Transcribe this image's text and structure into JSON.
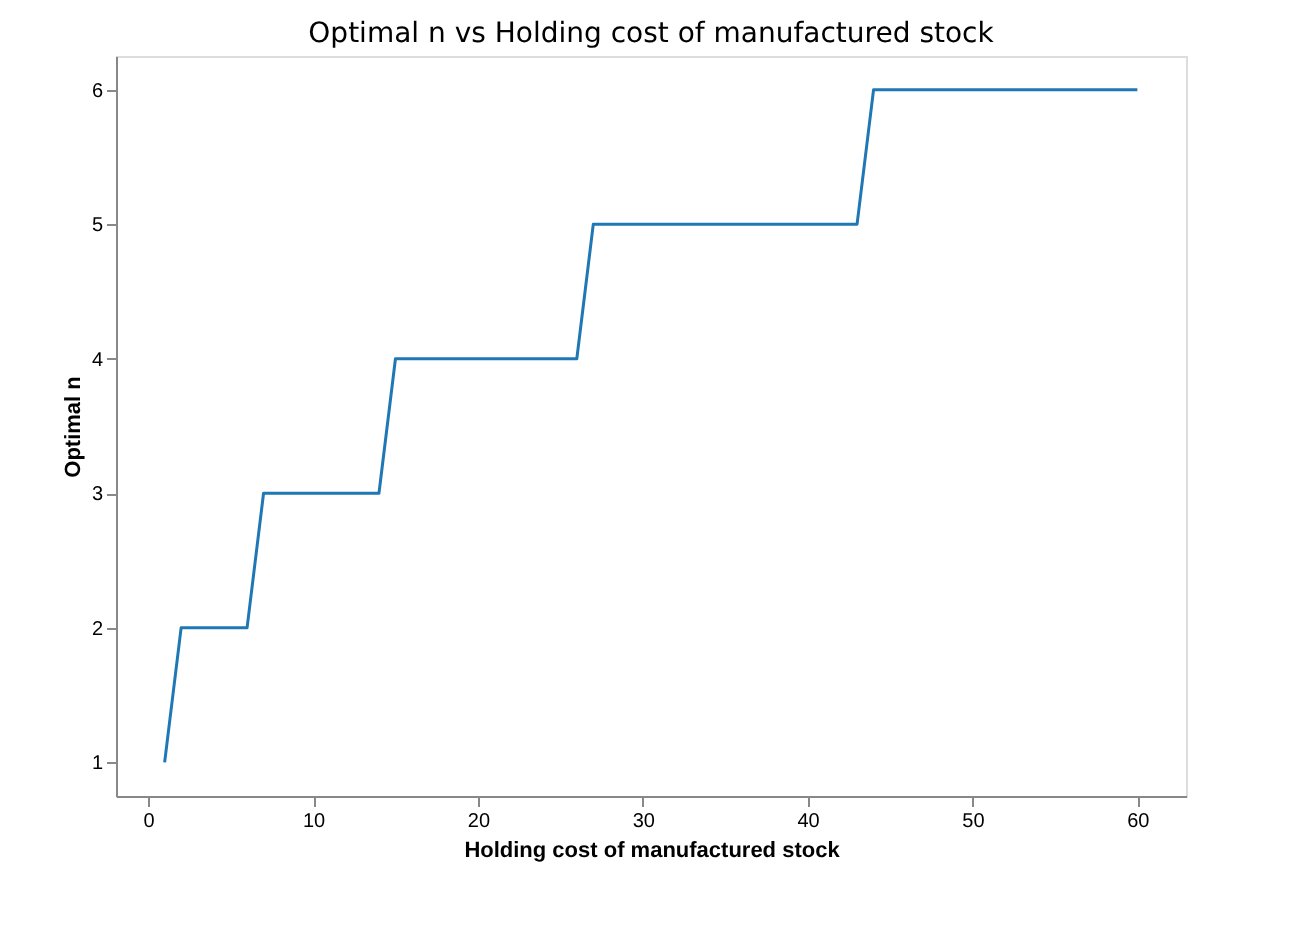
{
  "chart_data": {
    "type": "line",
    "title": "Optimal n vs Holding cost of manufactured stock",
    "xlabel": "Holding cost of manufactured stock",
    "ylabel": "Optimal n",
    "series": [
      {
        "color": "#1f77b4",
        "x": [
          1,
          2,
          6,
          7,
          14,
          15,
          26,
          27,
          43,
          44,
          60
        ],
        "values": [
          1,
          2,
          2,
          3,
          3,
          4,
          4,
          5,
          5,
          6,
          6
        ]
      }
    ],
    "xlim": [
      -1.95,
      62.95
    ],
    "ylim": [
      0.75,
      6.25
    ],
    "xticks": [
      0,
      10,
      20,
      30,
      40,
      50,
      60
    ],
    "yticks": [
      1,
      2,
      3,
      4,
      5,
      6
    ],
    "grid": false,
    "line_style": "solid",
    "marker": "none"
  }
}
